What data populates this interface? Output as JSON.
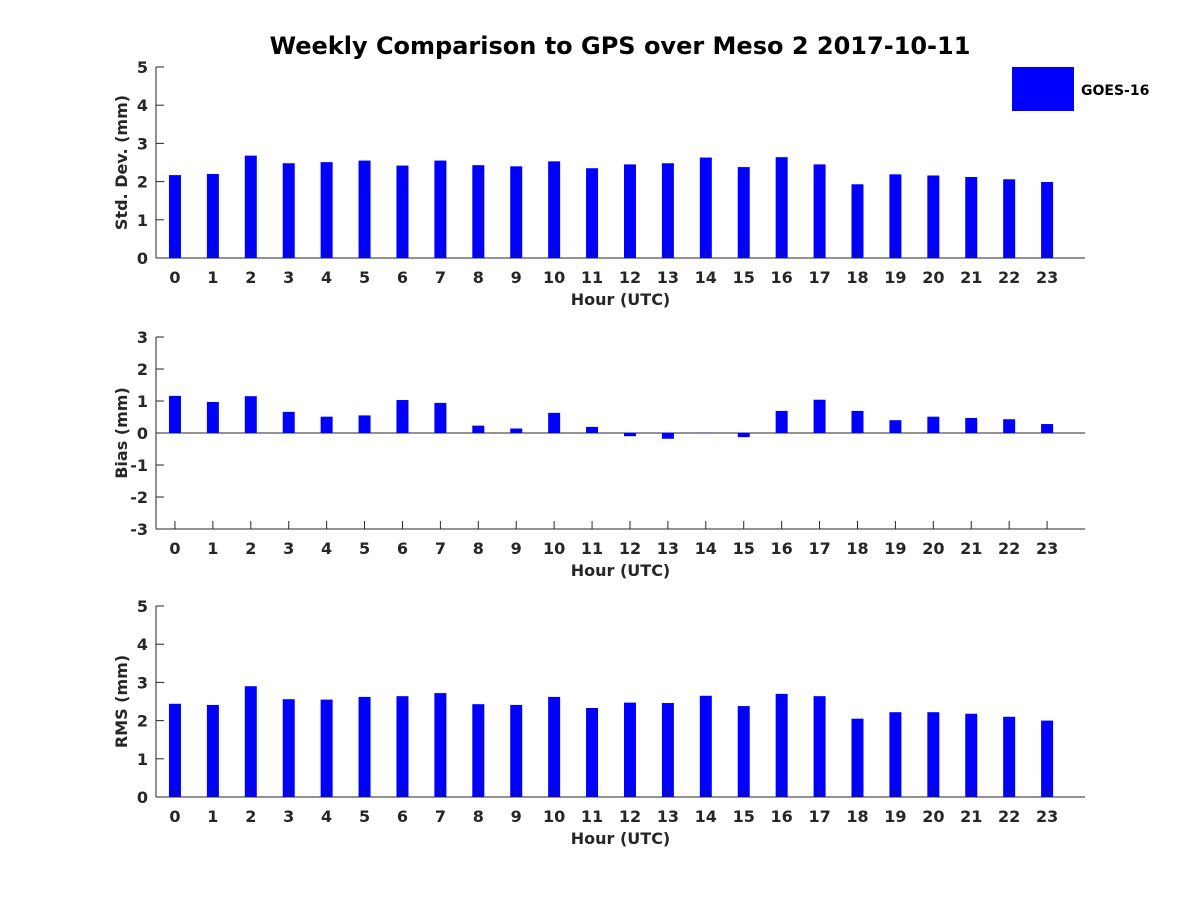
{
  "figure_title": "Weekly Comparison to GPS over Meso 2 2017-10-11",
  "legend": {
    "label": "GOES-16",
    "color": "#0000ff"
  },
  "chart_data": [
    {
      "type": "bar",
      "title": "Weekly Comparison to GPS over Meso 2 2017-10-11",
      "xlabel": "Hour (UTC)",
      "ylabel": "Std. Dev. (mm)",
      "ylim": [
        0,
        5
      ],
      "yticks": [
        0,
        1,
        2,
        3,
        4,
        5
      ],
      "categories": [
        "0",
        "1",
        "2",
        "3",
        "4",
        "5",
        "6",
        "7",
        "8",
        "9",
        "10",
        "11",
        "12",
        "13",
        "14",
        "15",
        "16",
        "17",
        "18",
        "19",
        "20",
        "21",
        "22",
        "23"
      ],
      "series": [
        {
          "name": "GOES-16",
          "color": "#0000ff",
          "values": [
            2.17,
            2.2,
            2.68,
            2.48,
            2.51,
            2.55,
            2.42,
            2.55,
            2.43,
            2.4,
            2.53,
            2.35,
            2.45,
            2.48,
            2.63,
            2.38,
            2.64,
            2.45,
            1.93,
            2.19,
            2.16,
            2.12,
            2.06,
            1.99
          ]
        }
      ]
    },
    {
      "type": "bar",
      "xlabel": "Hour (UTC)",
      "ylabel": "Bias (mm)",
      "ylim": [
        -3,
        3
      ],
      "yticks": [
        -3,
        -2,
        -1,
        0,
        1,
        2,
        3
      ],
      "categories": [
        "0",
        "1",
        "2",
        "3",
        "4",
        "5",
        "6",
        "7",
        "8",
        "9",
        "10",
        "11",
        "12",
        "13",
        "14",
        "15",
        "16",
        "17",
        "18",
        "19",
        "20",
        "21",
        "22",
        "23"
      ],
      "series": [
        {
          "name": "GOES-16",
          "color": "#0000ff",
          "values": [
            1.16,
            0.97,
            1.15,
            0.66,
            0.51,
            0.55,
            1.03,
            0.94,
            0.23,
            0.14,
            0.63,
            0.19,
            -0.1,
            -0.18,
            0.01,
            -0.13,
            0.69,
            1.04,
            0.69,
            0.4,
            0.51,
            0.47,
            0.43,
            0.28
          ]
        }
      ]
    },
    {
      "type": "bar",
      "xlabel": "Hour (UTC)",
      "ylabel": "RMS (mm)",
      "ylim": [
        0,
        5
      ],
      "yticks": [
        0,
        1,
        2,
        3,
        4,
        5
      ],
      "categories": [
        "0",
        "1",
        "2",
        "3",
        "4",
        "5",
        "6",
        "7",
        "8",
        "9",
        "10",
        "11",
        "12",
        "13",
        "14",
        "15",
        "16",
        "17",
        "18",
        "19",
        "20",
        "21",
        "22",
        "23"
      ],
      "series": [
        {
          "name": "GOES-16",
          "color": "#0000ff",
          "values": [
            2.44,
            2.41,
            2.9,
            2.56,
            2.55,
            2.62,
            2.64,
            2.72,
            2.43,
            2.41,
            2.62,
            2.33,
            2.47,
            2.46,
            2.65,
            2.38,
            2.7,
            2.64,
            2.05,
            2.22,
            2.22,
            2.18,
            2.1,
            2.0
          ]
        }
      ]
    }
  ]
}
